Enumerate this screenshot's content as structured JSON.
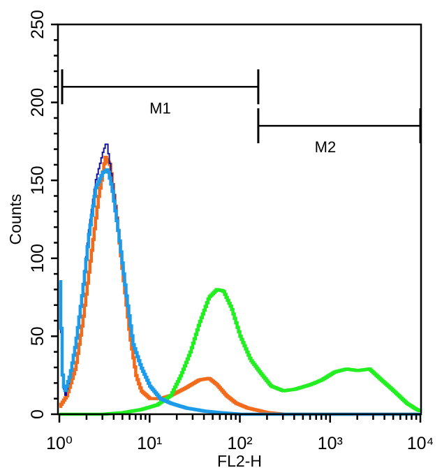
{
  "chart_data": {
    "type": "line",
    "title": "",
    "xlabel": "FL2-H",
    "ylabel": "Counts",
    "xscale": "log",
    "xlim": [
      1,
      10000
    ],
    "ylim": [
      0,
      250
    ],
    "grid": false,
    "x_ticks": [
      1,
      10,
      100,
      1000,
      10000
    ],
    "x_tick_labels": [
      "10⁰",
      "10¹",
      "10²",
      "10³",
      "10⁴"
    ],
    "y_ticks": [
      0,
      50,
      100,
      150,
      200,
      250
    ],
    "y_tick_labels": [
      "0",
      "50",
      "100",
      "150",
      "200",
      "250"
    ],
    "markers": [
      {
        "label": "M1",
        "x_start": 1.05,
        "x_end": 160,
        "y": 210
      },
      {
        "label": "M2",
        "x_start": 160,
        "x_end": 10000,
        "y": 185
      }
    ],
    "series": [
      {
        "name": "orange",
        "color": "#f26a1b",
        "x": [
          1,
          1.2,
          1.5,
          1.8,
          2.2,
          2.7,
          3.2,
          3.6,
          4.2,
          5,
          6,
          7,
          8,
          10,
          13,
          17,
          25,
          35,
          45,
          55,
          70,
          90,
          120,
          200,
          300,
          10000
        ],
        "y": [
          5,
          12,
          30,
          60,
          100,
          140,
          165,
          160,
          130,
          90,
          50,
          25,
          15,
          10,
          10,
          12,
          17,
          22,
          23,
          19,
          12,
          7,
          4,
          1,
          0,
          0
        ]
      },
      {
        "name": "green",
        "color": "#22ee22",
        "x": [
          1,
          3,
          5,
          8,
          12,
          17,
          22,
          28,
          35,
          45,
          55,
          65,
          80,
          100,
          130,
          170,
          220,
          300,
          400,
          600,
          800,
          1100,
          1500,
          2000,
          2700,
          3500,
          5000,
          7000,
          9000,
          10000
        ],
        "y": [
          0,
          0,
          1,
          3,
          6,
          12,
          25,
          40,
          58,
          75,
          80,
          79,
          68,
          50,
          35,
          26,
          18,
          15,
          16,
          19,
          22,
          27,
          29,
          28,
          29,
          23,
          15,
          7,
          3,
          2
        ]
      },
      {
        "name": "navy",
        "color": "#10109a",
        "x": [
          1,
          1.08,
          1.15,
          1.3,
          1.5,
          1.8,
          2.1,
          2.5,
          3.0,
          3.3,
          3.6,
          4.0,
          4.5,
          5.5,
          6.5,
          8,
          10,
          13,
          17,
          25,
          40,
          60,
          100,
          10000
        ],
        "y": [
          80,
          20,
          12,
          25,
          45,
          80,
          118,
          150,
          168,
          175,
          160,
          140,
          115,
          75,
          45,
          30,
          18,
          10,
          7,
          4,
          2,
          1,
          0,
          0
        ]
      },
      {
        "name": "light-blue",
        "color": "#1e9be8",
        "x": [
          1,
          1.08,
          1.15,
          1.3,
          1.5,
          1.8,
          2.1,
          2.5,
          3.0,
          3.4,
          3.8,
          4.5,
          5.5,
          6.5,
          8,
          10,
          13,
          17,
          25,
          40,
          60,
          100,
          10000
        ],
        "y": [
          85,
          20,
          15,
          25,
          45,
          80,
          115,
          145,
          155,
          157,
          145,
          115,
          75,
          45,
          30,
          18,
          10,
          7,
          4,
          2,
          1,
          0,
          0
        ]
      }
    ]
  }
}
